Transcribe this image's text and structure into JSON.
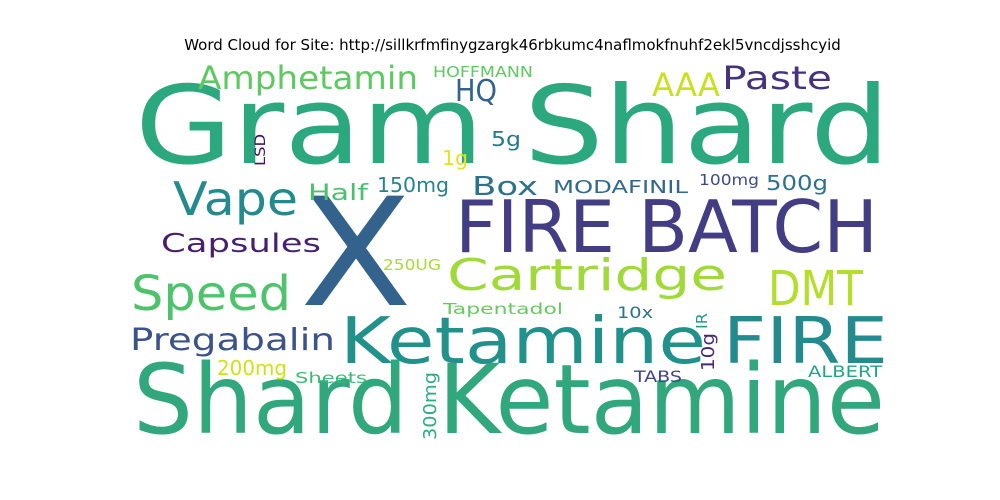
{
  "chart_data": {
    "type": "wordcloud",
    "title": "Word Cloud for Site: http://sillkrfmfinygzargk46rbkumc4naflmokfnuhf2ekl5vncdjsshcyid",
    "words": [
      {
        "text": "Gram Shard",
        "color": "#2ca87f"
      },
      {
        "text": "Shard Ketamine",
        "color": "#31a77d"
      },
      {
        "text": "X",
        "color": "#33638d"
      },
      {
        "text": "FIRE BATCH",
        "color": "#433d84"
      },
      {
        "text": "Ketamine",
        "color": "#21918c"
      },
      {
        "text": "FIRE",
        "color": "#238a8d"
      },
      {
        "text": "Cartridge",
        "color": "#a0da39"
      },
      {
        "text": "Speed",
        "color": "#4ec36b"
      },
      {
        "text": "DMT",
        "color": "#b5de2b"
      },
      {
        "text": "Vape",
        "color": "#238a8d"
      },
      {
        "text": "Amphetamin",
        "color": "#5ec962"
      },
      {
        "text": "Pregabalin",
        "color": "#3b528b"
      },
      {
        "text": "Capsules",
        "color": "#481f70"
      },
      {
        "text": "Paste",
        "color": "#46337e"
      },
      {
        "text": "AAA",
        "color": "#c8e020"
      },
      {
        "text": "HQ",
        "color": "#33638d"
      },
      {
        "text": "Box",
        "color": "#2c728e"
      },
      {
        "text": "Half",
        "color": "#4ac16d"
      },
      {
        "text": "150mg",
        "color": "#25848e"
      },
      {
        "text": "MODAFINIL",
        "color": "#31688e"
      },
      {
        "text": "500g",
        "color": "#2c728e"
      },
      {
        "text": "100mg",
        "color": "#3e4989"
      },
      {
        "text": "5g",
        "color": "#2a788e"
      },
      {
        "text": "1g",
        "color": "#e2e418"
      },
      {
        "text": "LSD",
        "color": "#471063"
      },
      {
        "text": "HOFFMANN",
        "color": "#5ec962"
      },
      {
        "text": "250UG",
        "color": "#a8db34"
      },
      {
        "text": "Tapentadol",
        "color": "#65cb5e"
      },
      {
        "text": "10x",
        "color": "#2c728e"
      },
      {
        "text": "IR",
        "color": "#1f9a8a"
      },
      {
        "text": "10g",
        "color": "#482878"
      },
      {
        "text": "200mg",
        "color": "#d0e11c"
      },
      {
        "text": "Sheets",
        "color": "#3bbb75"
      },
      {
        "text": "300mg",
        "color": "#27ad81"
      },
      {
        "text": "TABS",
        "color": "#414487"
      },
      {
        "text": "ALBERT",
        "color": "#21a585"
      }
    ]
  }
}
